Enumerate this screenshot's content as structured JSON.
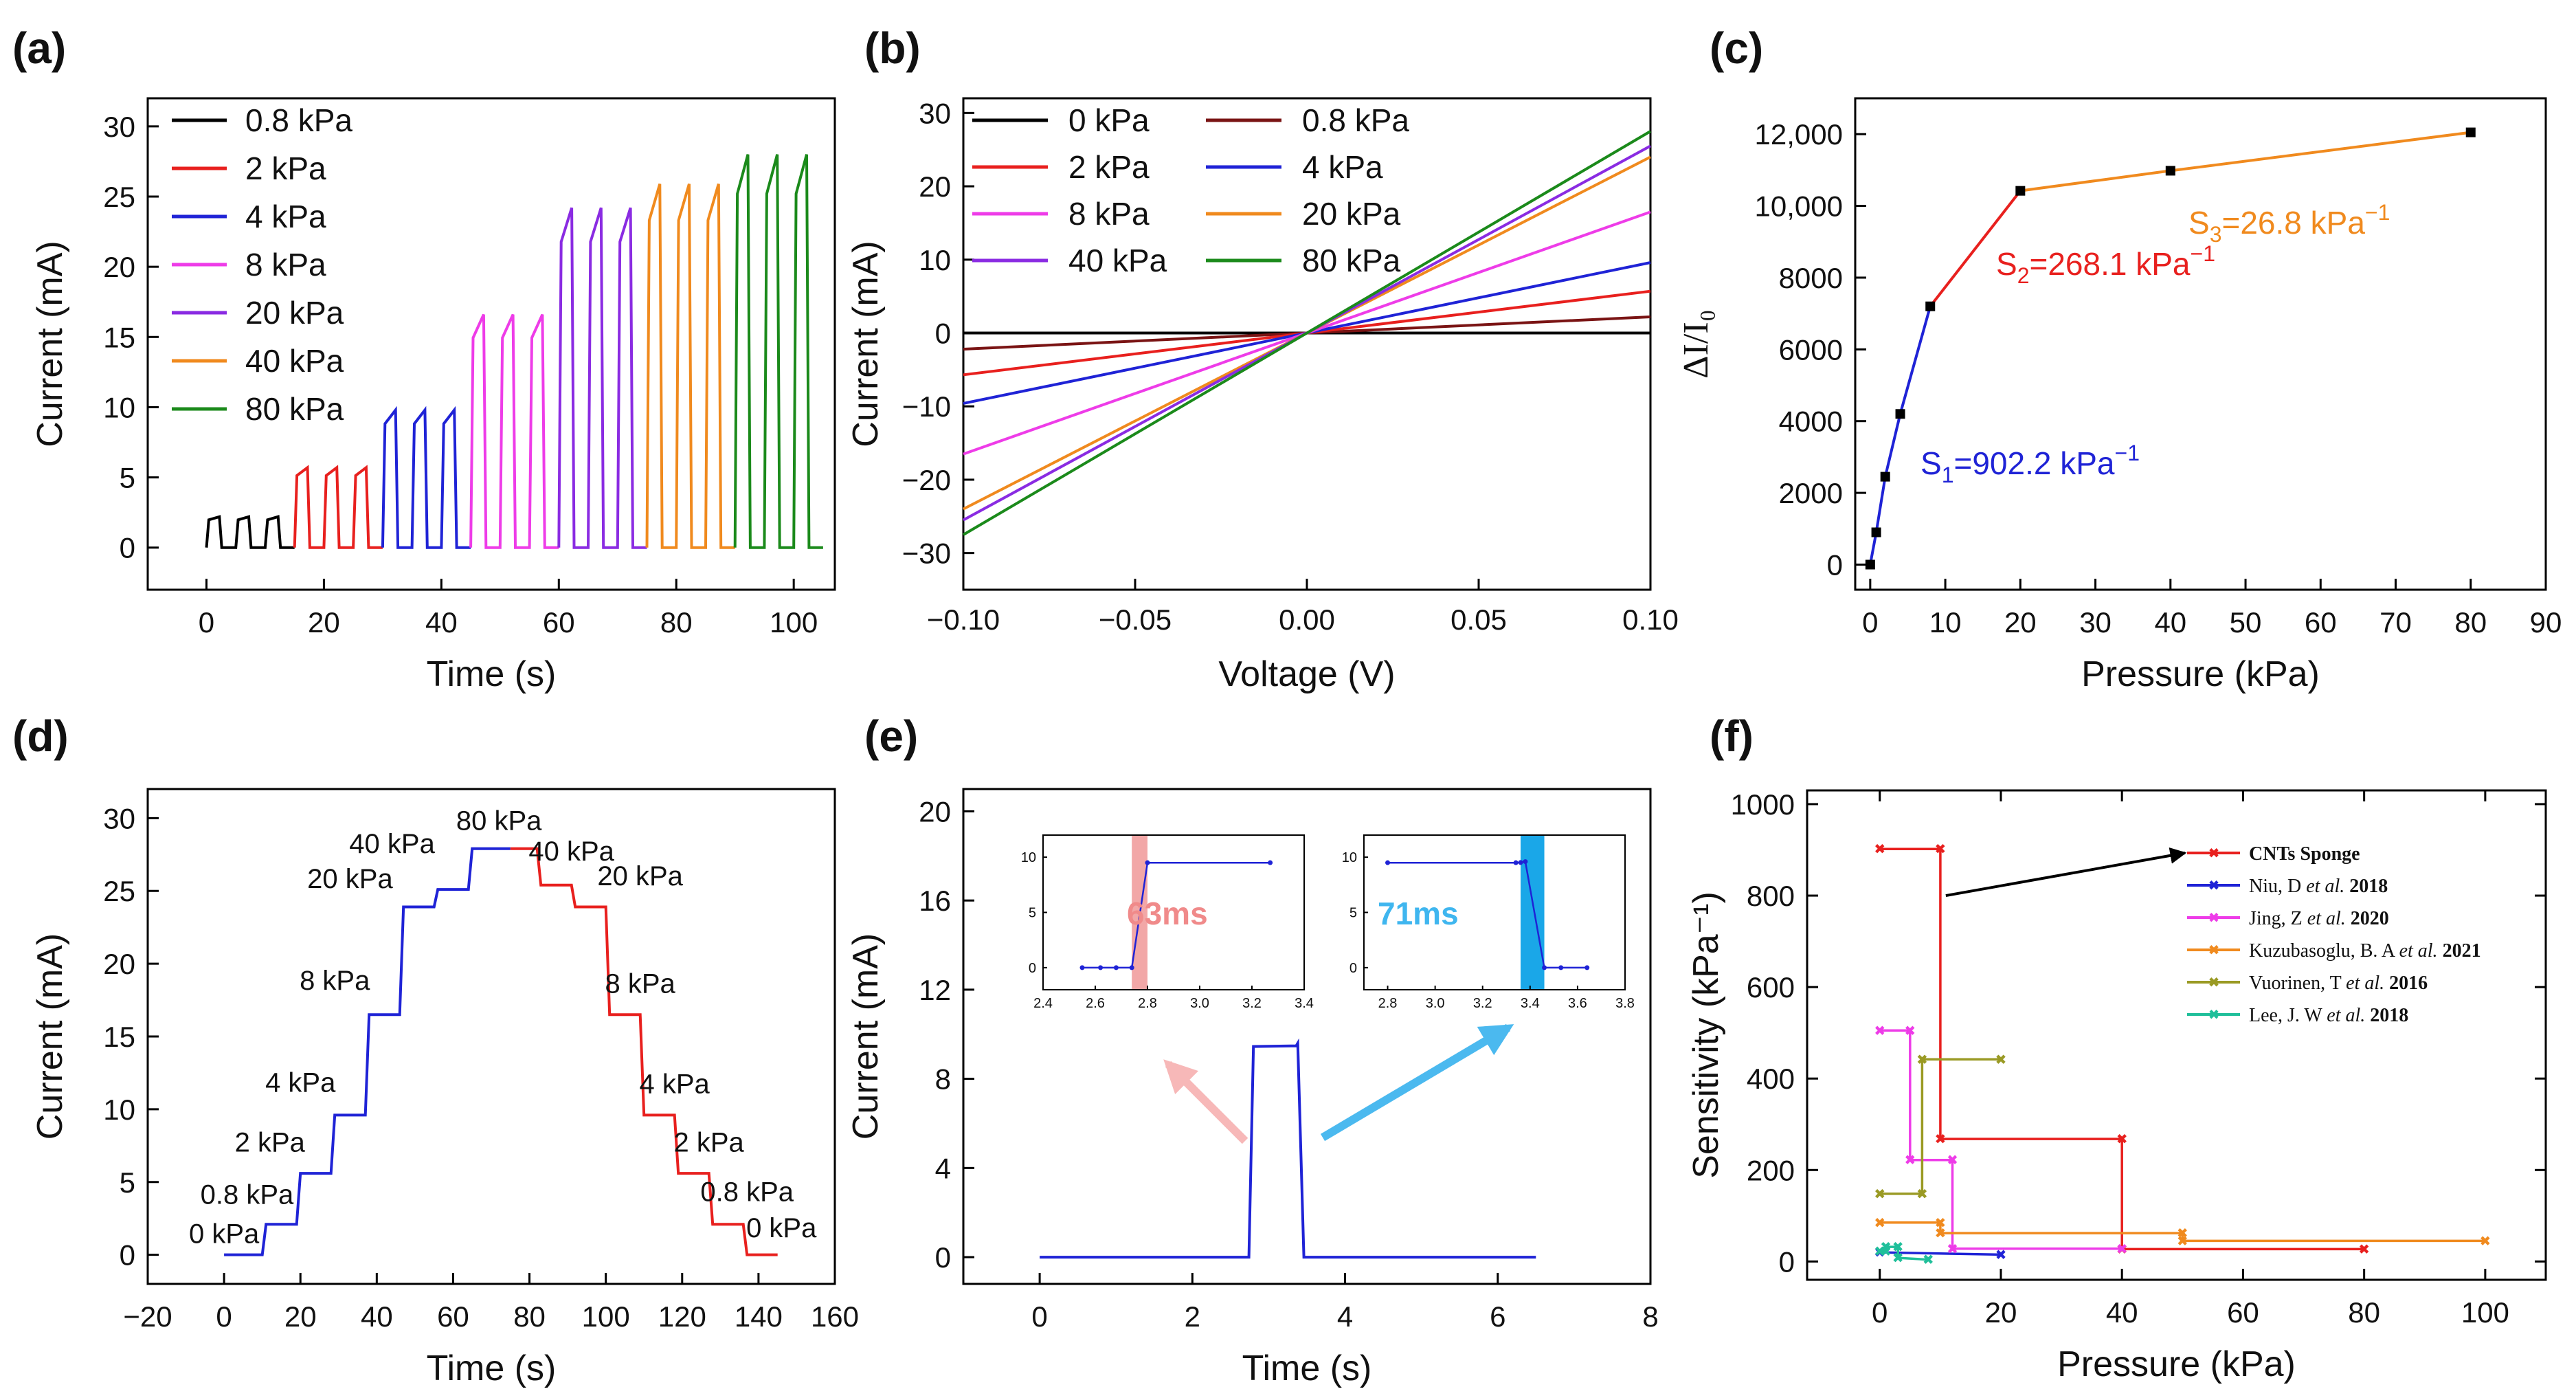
{
  "figure": {
    "panels": [
      {
        "id": "a",
        "label": "(a)",
        "chart_data": {
          "type": "line",
          "title": "",
          "xlabel": "Time (s)",
          "ylabel": "Current (mA)",
          "xlim": [
            -10,
            107
          ],
          "ylim": [
            -3,
            32
          ],
          "xticks": [
            0,
            20,
            40,
            60,
            80,
            100
          ],
          "yticks": [
            0,
            5,
            10,
            15,
            20,
            25,
            30
          ],
          "legend_position": "top-left",
          "series": [
            {
              "name": "0.8 kPa",
              "color": "#000000",
              "t0": 0,
              "amp": 2.2,
              "pulses": 3
            },
            {
              "name": "2 kPa",
              "color": "#e8201e",
              "t0": 15,
              "amp": 5.7,
              "pulses": 3
            },
            {
              "name": "4 kPa",
              "color": "#1f23d6",
              "t0": 30,
              "amp": 9.8,
              "pulses": 3
            },
            {
              "name": "8 kPa",
              "color": "#ee3ce8",
              "t0": 45,
              "amp": 16.6,
              "pulses": 3
            },
            {
              "name": "20 kPa",
              "color": "#8a2be2",
              "t0": 60,
              "amp": 24.2,
              "pulses": 3
            },
            {
              "name": "40 kPa",
              "color": "#f08a1e",
              "t0": 75,
              "amp": 25.9,
              "pulses": 3
            },
            {
              "name": "80 kPa",
              "color": "#1b8a1b",
              "t0": 90,
              "amp": 28.0,
              "pulses": 3
            }
          ]
        }
      },
      {
        "id": "b",
        "label": "(b)",
        "chart_data": {
          "type": "line",
          "title": "",
          "xlabel": "Voltage (V)",
          "ylabel": "Current (mA)",
          "xlim": [
            -0.1,
            0.1
          ],
          "ylim": [
            -35,
            32
          ],
          "xticks": [
            -0.1,
            -0.05,
            0.0,
            0.05,
            0.1
          ],
          "xtick_labels": [
            "−0.10",
            "−0.05",
            "0.00",
            "0.05",
            "0.10"
          ],
          "yticks": [
            -30,
            -20,
            -10,
            0,
            10,
            20,
            30
          ],
          "legend_position": "top-left, two columns",
          "series": [
            {
              "name": "0 kPa",
              "color": "#000000",
              "x": [
                -0.1,
                0.1
              ],
              "y": [
                0.0,
                0.0
              ]
            },
            {
              "name": "0.8 kPa",
              "color": "#7a1414",
              "x": [
                -0.1,
                0.1
              ],
              "y": [
                -2.2,
                2.2
              ]
            },
            {
              "name": "2 kPa",
              "color": "#e8201e",
              "x": [
                -0.1,
                0.1
              ],
              "y": [
                -5.7,
                5.7
              ]
            },
            {
              "name": "4 kPa",
              "color": "#1f23d6",
              "x": [
                -0.1,
                0.1
              ],
              "y": [
                -9.6,
                9.6
              ]
            },
            {
              "name": "8 kPa",
              "color": "#ee3ce8",
              "x": [
                -0.1,
                0.1
              ],
              "y": [
                -16.5,
                16.5
              ]
            },
            {
              "name": "20 kPa",
              "color": "#f08a1e",
              "x": [
                -0.1,
                0.1
              ],
              "y": [
                -24.0,
                24.0
              ]
            },
            {
              "name": "40 kPa",
              "color": "#8a2be2",
              "x": [
                -0.1,
                0.1
              ],
              "y": [
                -25.5,
                25.5
              ]
            },
            {
              "name": "80 kPa",
              "color": "#1b8a1b",
              "x": [
                -0.1,
                0.1
              ],
              "y": [
                -27.5,
                27.5
              ]
            }
          ]
        }
      },
      {
        "id": "c",
        "label": "(c)",
        "chart_data": {
          "type": "line",
          "title": "",
          "xlabel": "Pressure (kPa)",
          "ylabel": "ΔI/I₀",
          "xlim": [
            -2,
            90
          ],
          "ylim": [
            -700,
            13000
          ],
          "xticks": [
            0,
            10,
            20,
            30,
            40,
            50,
            60,
            70,
            80,
            90
          ],
          "yticks": [
            0,
            2000,
            4000,
            6000,
            8000,
            10000,
            12000
          ],
          "ytick_labels": [
            "0",
            "2000",
            "4000",
            "6000",
            "8000",
            "10,000",
            "12,000"
          ],
          "series": [
            {
              "name": "S1",
              "color": "#1f23d6",
              "x": [
                0,
                0.8,
                2,
                4,
                8
              ],
              "y": [
                0,
                900,
                2450,
                4200,
                7200
              ]
            },
            {
              "name": "S2",
              "color": "#e8201e",
              "x": [
                8,
                20
              ],
              "y": [
                7200,
                10420
              ]
            },
            {
              "name": "S3",
              "color": "#f08a1e",
              "x": [
                20,
                40,
                80
              ],
              "y": [
                10420,
                10980,
                12050
              ]
            }
          ],
          "markers": {
            "x": [
              0,
              0.8,
              2,
              4,
              8,
              20,
              40,
              80
            ],
            "y": [
              0,
              900,
              2450,
              4200,
              7200,
              10420,
              10980,
              12050
            ]
          },
          "annotations": [
            {
              "label": "S",
              "sub": "1",
              "text": "=902.2 kPa",
              "sup": "−1",
              "color": "#1f23d6"
            },
            {
              "label": "S",
              "sub": "2",
              "text": "=268.1 kPa",
              "sup": "−1",
              "color": "#e8201e"
            },
            {
              "label": "S",
              "sub": "3",
              "text": "=26.8 kPa",
              "sup": "−1",
              "color": "#f08a1e"
            }
          ]
        }
      },
      {
        "id": "d",
        "label": "(d)",
        "chart_data": {
          "type": "line",
          "title": "",
          "xlabel": "Time (s)",
          "ylabel": "Current (mA)",
          "xlim": [
            -20,
            160
          ],
          "ylim": [
            -2,
            32
          ],
          "xticks": [
            -20,
            0,
            20,
            40,
            60,
            80,
            100,
            120,
            140,
            160
          ],
          "yticks": [
            0,
            5,
            10,
            15,
            20,
            25,
            30
          ],
          "loading": {
            "color": "#1f23d6",
            "x": [
              0,
              10,
              11,
              19,
              20,
              28,
              29,
              37,
              38,
              46,
              47,
              55,
              56,
              64,
              65,
              75
            ],
            "y": [
              0,
              0,
              2.1,
              2.1,
              5.6,
              5.6,
              9.6,
              9.6,
              16.5,
              16.5,
              23.9,
              23.9,
              25.1,
              25.1,
              27.9,
              27.9
            ]
          },
          "unloading": {
            "color": "#e8201e",
            "x": [
              75,
              82,
              83,
              91,
              92,
              100,
              101,
              109,
              110,
              118,
              119,
              127,
              128,
              136,
              137,
              145
            ],
            "y": [
              27.9,
              27.9,
              25.4,
              25.4,
              23.9,
              23.9,
              16.5,
              16.5,
              9.6,
              9.6,
              5.6,
              5.6,
              2.1,
              2.1,
              0,
              0
            ]
          },
          "point_labels": [
            {
              "text": "0 kPa",
              "x": 0,
              "y": 0.8
            },
            {
              "text": "0.8 kPa",
              "x": 6,
              "y": 3.5
            },
            {
              "text": "2 kPa",
              "x": 12,
              "y": 7.1
            },
            {
              "text": "4 kPa",
              "x": 20,
              "y": 11.2
            },
            {
              "text": "8 kPa",
              "x": 29,
              "y": 18.2
            },
            {
              "text": "20 kPa",
              "x": 33,
              "y": 25.2
            },
            {
              "text": "40 kPa",
              "x": 44,
              "y": 27.6
            },
            {
              "text": "80 kPa",
              "x": 72,
              "y": 29.2
            },
            {
              "text": "40 kPa",
              "x": 91,
              "y": 27.1
            },
            {
              "text": "20 kPa",
              "x": 109,
              "y": 25.4
            },
            {
              "text": "8 kPa",
              "x": 109,
              "y": 18.0
            },
            {
              "text": "4 kPa",
              "x": 118,
              "y": 11.1
            },
            {
              "text": "2 kPa",
              "x": 127,
              "y": 7.1
            },
            {
              "text": "0.8 kPa",
              "x": 137,
              "y": 3.7
            },
            {
              "text": "0 kPa",
              "x": 146,
              "y": 1.2
            }
          ]
        }
      },
      {
        "id": "e",
        "label": "(e)",
        "chart_data": {
          "type": "line",
          "title": "",
          "xlabel": "Time (s)",
          "ylabel": "Current (mA)",
          "xlim": [
            -1,
            8
          ],
          "ylim": [
            -1.2,
            21
          ],
          "xticks": [
            0,
            2,
            4,
            6,
            8
          ],
          "yticks": [
            0,
            4,
            8,
            12,
            16,
            20
          ],
          "series": [
            {
              "name": "pulse",
              "color": "#1f23d6",
              "x": [
                0,
                2.74,
                2.8,
                3.36,
                3.38,
                3.46,
                6.5
              ],
              "y": [
                0,
                0,
                9.45,
                9.48,
                9.6,
                0,
                0
              ]
            }
          ],
          "insets": [
            {
              "id": "rise",
              "label": "63ms",
              "color": "#f2a7a7",
              "label_color": "#f08a8a",
              "xlim": [
                2.4,
                3.4
              ],
              "ylim": [
                -2,
                12
              ],
              "xticks": [
                2.4,
                2.6,
                2.8,
                3.0,
                3.2,
                3.4
              ],
              "yticks": [
                0,
                5,
                10
              ],
              "band": [
                2.74,
                2.8
              ],
              "x": [
                2.55,
                2.62,
                2.68,
                2.74,
                2.8,
                3.27
              ],
              "y": [
                0,
                0,
                0,
                0,
                9.5,
                9.5
              ]
            },
            {
              "id": "fall",
              "label": "71ms",
              "color": "#1aa7e8",
              "label_color": "#3fb6ef",
              "xlim": [
                2.7,
                3.8
              ],
              "ylim": [
                -2,
                12
              ],
              "xticks": [
                2.8,
                3.0,
                3.2,
                3.4,
                3.6,
                3.8
              ],
              "yticks": [
                0,
                5,
                10
              ],
              "band": [
                3.36,
                3.46
              ],
              "x": [
                2.8,
                3.34,
                3.36,
                3.38,
                3.46,
                3.53,
                3.64
              ],
              "y": [
                9.5,
                9.5,
                9.52,
                9.6,
                0,
                0,
                0
              ]
            }
          ]
        }
      },
      {
        "id": "f",
        "label": "(f)",
        "chart_data": {
          "type": "line",
          "title": "",
          "xlabel": "Pressure (kPa)",
          "ylabel": "Sensitivity (kPa⁻¹)",
          "xlim": [
            -12,
            110
          ],
          "ylim": [
            -40,
            1030
          ],
          "xticks": [
            0,
            20,
            40,
            60,
            80,
            100
          ],
          "yticks": [
            0,
            200,
            400,
            600,
            800,
            1000
          ],
          "legend_position": "top-right",
          "series": [
            {
              "name": "CNTs Sponge",
              "author": "CNTs Sponge",
              "etal": "",
              "year": "",
              "color": "#e8201e",
              "x": [
                0,
                10,
                10,
                40,
                40,
                80
              ],
              "y": [
                902,
                902,
                268,
                268,
                27,
                27
              ]
            },
            {
              "name": "Niu, D et al. 2018",
              "author": "Niu, D ",
              "etal": "et al.",
              "year": "2018",
              "color": "#1f23d6",
              "x": [
                0,
                20
              ],
              "y": [
                20,
                15
              ]
            },
            {
              "name": "Jing, Z et al. 2020",
              "author": "Jing, Z ",
              "etal": "et al.",
              "year": "2020",
              "color": "#ee3ce8",
              "x": [
                0,
                5,
                5,
                12,
                12,
                40
              ],
              "y": [
                505,
                505,
                222,
                222,
                28,
                28
              ]
            },
            {
              "name": "Kuzubasoglu, B. A et al. 2021",
              "author": "Kuzubasoglu, B. A ",
              "etal": "et al.",
              "year": "2021",
              "color": "#f08a1e",
              "x": [
                0,
                10,
                10,
                50,
                50,
                100
              ],
              "y": [
                85,
                85,
                62,
                62,
                45,
                45
              ]
            },
            {
              "name": "Vuorinen, T et al. 2016",
              "author": "Vuorinen, T ",
              "etal": "et al.",
              "year": "2016",
              "color": "#9a9a24",
              "x": [
                0,
                7,
                7,
                20
              ],
              "y": [
                148,
                148,
                442,
                442
              ]
            },
            {
              "name": "Lee, J. W et al. 2018",
              "author": "Lee, J. W ",
              "etal": "et al.",
              "year": "2018",
              "color": "#1fbf9a",
              "x": [
                0,
                1,
                1,
                3,
                3,
                8
              ],
              "y": [
                22,
                22,
                32,
                32,
                8,
                4
              ]
            }
          ]
        }
      }
    ]
  }
}
